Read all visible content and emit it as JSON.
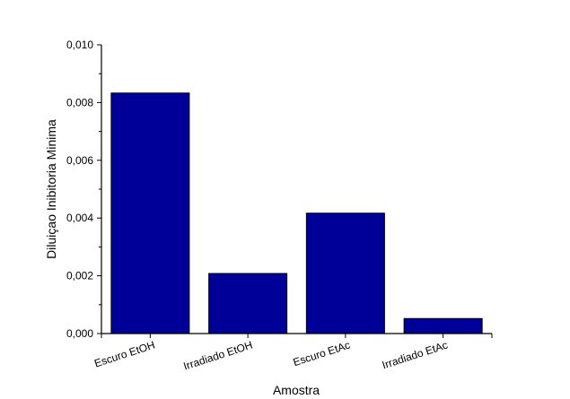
{
  "chart_data": {
    "type": "bar",
    "categories": [
      "Escuro EtOH",
      "Irradiado EtOH",
      "Escuro EtAc",
      "Irradiado EtAc"
    ],
    "values": [
      0.00833,
      0.00208,
      0.00417,
      0.00052
    ],
    "xlabel": "Amostra",
    "ylabel": "Diluiçao Inibitoria Minima",
    "ylim": [
      0,
      0.01
    ],
    "yticks": [
      "0,000",
      "0,002",
      "0,004",
      "0,006",
      "0,008",
      "0,010"
    ],
    "bar_color": "#000099",
    "grid": false
  }
}
